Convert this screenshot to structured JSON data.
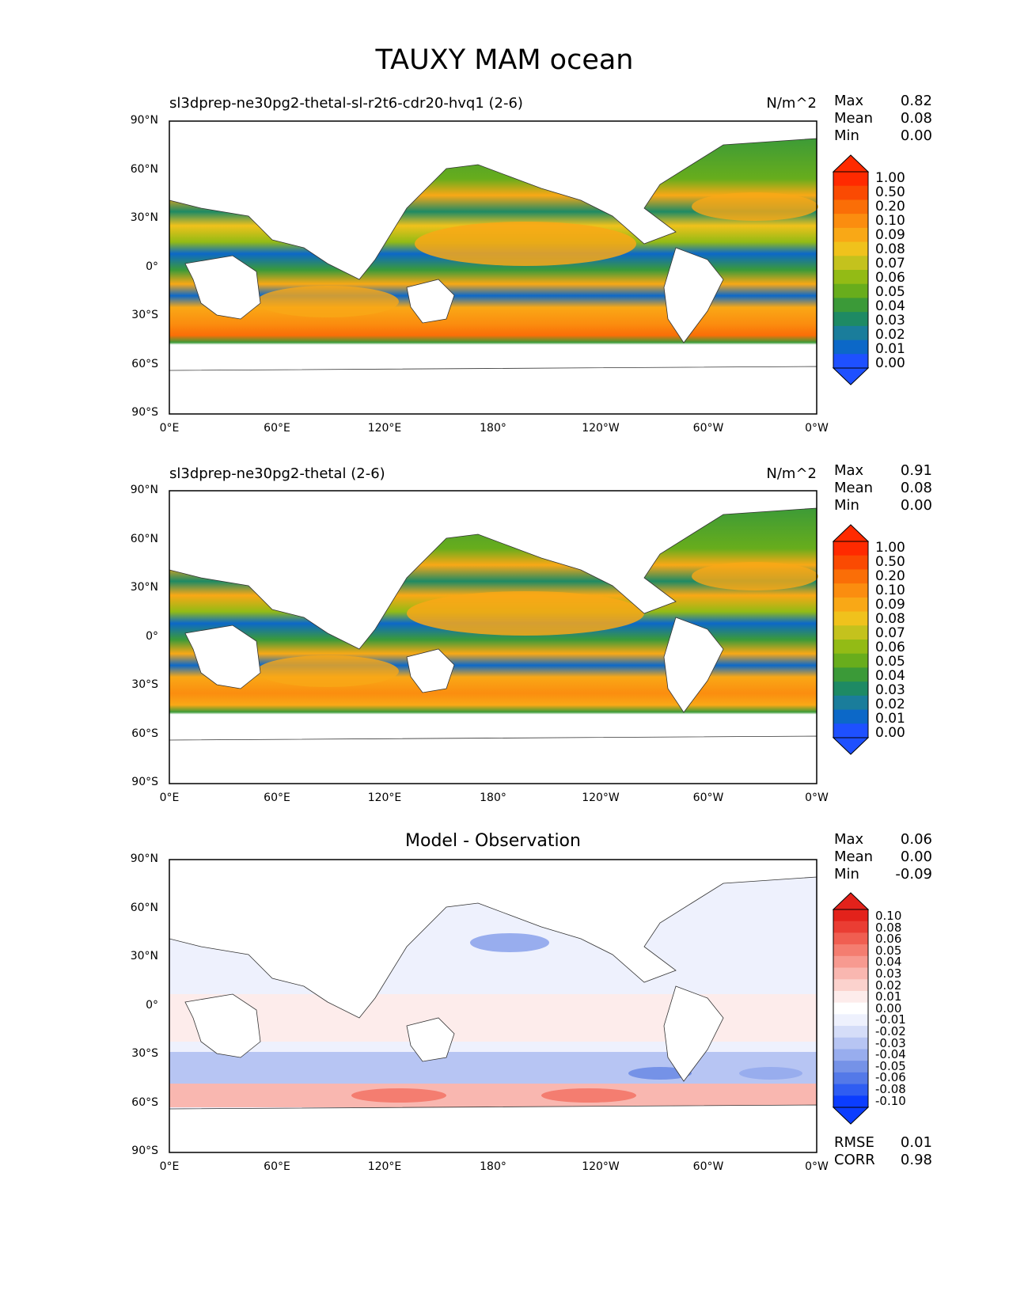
{
  "title": "TAUXY MAM ocean",
  "colors": {
    "tauxy_scale": [
      "#1e50ff",
      "#0c68c8",
      "#1a7d9b",
      "#1e8a64",
      "#3b9a38",
      "#68ad1c",
      "#93bb15",
      "#c4c21d",
      "#f0c21c",
      "#f9a816",
      "#fb8d0f",
      "#fa6e07",
      "#fa4a02",
      "#ff2a00"
    ],
    "diff_scale": [
      "#0b3dff",
      "#2f5df2",
      "#5479e8",
      "#7592e7",
      "#98adee",
      "#b7c5f3",
      "#d5ddf8",
      "#eef1fd",
      "#ffffff",
      "#fdeceb",
      "#fbd2cd",
      "#f9b7b0",
      "#f79a90",
      "#f47d70",
      "#f05e51",
      "#ea3d33",
      "#e3221b"
    ]
  },
  "axes": {
    "yticks": [
      "90°N",
      "60°N",
      "30°N",
      "0°",
      "30°S",
      "60°S",
      "90°S"
    ],
    "xticks": [
      "0°E",
      "60°E",
      "120°E",
      "180°",
      "120°W",
      "60°W",
      "0°W"
    ]
  },
  "panels": [
    {
      "title": "sl3dprep-ne30pg2-thetal-sl-r2t6-cdr20-hvq1 (2-6)",
      "units": "N/m^2",
      "stats": [
        {
          "label": "Max",
          "value": "0.82"
        },
        {
          "label": "Mean",
          "value": "0.08"
        },
        {
          "label": "Min",
          "value": "0.00"
        }
      ],
      "colorbar_labels": [
        "1.00",
        "0.50",
        "0.20",
        "0.10",
        "0.09",
        "0.08",
        "0.07",
        "0.06",
        "0.05",
        "0.04",
        "0.03",
        "0.02",
        "0.01",
        "0.00"
      ]
    },
    {
      "title": "sl3dprep-ne30pg2-thetal (2-6)",
      "units": "N/m^2",
      "stats": [
        {
          "label": "Max",
          "value": "0.91"
        },
        {
          "label": "Mean",
          "value": "0.08"
        },
        {
          "label": "Min",
          "value": "0.00"
        }
      ],
      "colorbar_labels": [
        "1.00",
        "0.50",
        "0.20",
        "0.10",
        "0.09",
        "0.08",
        "0.07",
        "0.06",
        "0.05",
        "0.04",
        "0.03",
        "0.02",
        "0.01",
        "0.00"
      ]
    },
    {
      "title": "Model - Observation",
      "units": "",
      "stats": [
        {
          "label": "Max",
          "value": "0.06"
        },
        {
          "label": "Mean",
          "value": "0.00"
        },
        {
          "label": "Min",
          "value": "-0.09"
        }
      ],
      "colorbar_labels": [
        "0.10",
        "0.08",
        "0.06",
        "0.05",
        "0.04",
        "0.03",
        "0.02",
        "0.01",
        "0.00",
        "-0.01",
        "-0.02",
        "-0.03",
        "-0.04",
        "-0.05",
        "-0.06",
        "-0.08",
        "-0.10"
      ],
      "metrics": [
        {
          "label": "RMSE",
          "value": "0.01"
        },
        {
          "label": "CORR",
          "value": "0.98"
        }
      ]
    }
  ]
}
